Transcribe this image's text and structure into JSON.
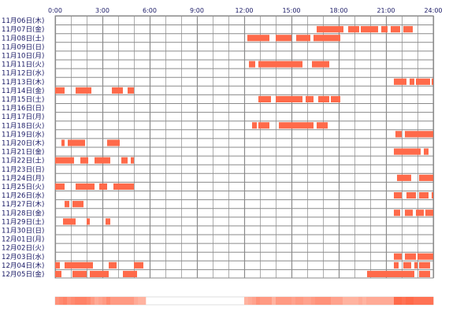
{
  "colors": {
    "bar": "#ff6a4a",
    "bar_light": "#ff9a80",
    "grid": "#8a8a8a",
    "text": "#1a1a66",
    "density_base": "#ffe6dd",
    "density_peak": "#ff6a4a"
  },
  "chart_data": {
    "type": "heatmap",
    "title": "",
    "x_axis": {
      "unit": "hours",
      "range": [
        0,
        24
      ],
      "tick_labels": [
        "0:00",
        "3:00",
        "6:00",
        "9:00",
        "12:00",
        "15:00",
        "18:00",
        "21:00",
        "24:00"
      ]
    },
    "grid": true,
    "rows": [
      {
        "label": "11月06日(木)",
        "segments": []
      },
      {
        "label": "11月07日(金)",
        "segments": [
          [
            16.6,
            18.3
          ],
          [
            18.6,
            19.3
          ],
          [
            19.4,
            20.5
          ],
          [
            20.7,
            21.1
          ],
          [
            21.3,
            21.9
          ],
          [
            22.1,
            22.7
          ]
        ]
      },
      {
        "label": "11月08日(土)",
        "segments": [
          [
            12.2,
            13.6
          ],
          [
            14.0,
            15.0
          ],
          [
            15.3,
            16.2
          ],
          [
            16.4,
            18.1
          ]
        ]
      },
      {
        "label": "11月09日(日)",
        "segments": []
      },
      {
        "label": "11月10日(月)",
        "segments": []
      },
      {
        "label": "11月11日(火)",
        "segments": [
          [
            12.3,
            12.7
          ],
          [
            12.9,
            15.7
          ],
          [
            16.3,
            17.4
          ]
        ]
      },
      {
        "label": "11月12日(水)",
        "segments": []
      },
      {
        "label": "11月13日(木)",
        "segments": [
          [
            21.5,
            22.3
          ],
          [
            22.5,
            22.8
          ],
          [
            22.9,
            23.8
          ],
          [
            23.9,
            24.0
          ]
        ]
      },
      {
        "label": "11月14日(金)",
        "segments": [
          [
            0.0,
            0.6
          ],
          [
            1.3,
            2.3
          ],
          [
            3.6,
            4.3
          ],
          [
            4.6,
            5.0
          ]
        ]
      },
      {
        "label": "11月15日(土)",
        "segments": [
          [
            12.9,
            13.7
          ],
          [
            14.0,
            15.7
          ],
          [
            15.9,
            16.4
          ],
          [
            16.7,
            17.4
          ],
          [
            17.5,
            18.1
          ]
        ]
      },
      {
        "label": "11月16日(日)",
        "segments": []
      },
      {
        "label": "11月17日(月)",
        "segments": []
      },
      {
        "label": "11月18日(火)",
        "segments": [
          [
            12.5,
            12.8
          ],
          [
            12.9,
            13.6
          ],
          [
            14.2,
            16.4
          ],
          [
            16.6,
            17.3
          ]
        ]
      },
      {
        "label": "11月19日(水)",
        "segments": [
          [
            21.6,
            22.0
          ],
          [
            22.2,
            24.0
          ]
        ]
      },
      {
        "label": "11月20日(木)",
        "segments": [
          [
            0.4,
            0.6
          ],
          [
            0.8,
            1.9
          ],
          [
            3.3,
            4.1
          ]
        ]
      },
      {
        "label": "11月21日(金)",
        "segments": [
          [
            21.5,
            23.2
          ],
          [
            23.4,
            23.7
          ]
        ]
      },
      {
        "label": "11月22日(土)",
        "segments": [
          [
            0.0,
            1.2
          ],
          [
            1.6,
            2.1
          ],
          [
            2.5,
            3.5
          ],
          [
            4.2,
            4.6
          ],
          [
            4.8,
            5.0
          ]
        ]
      },
      {
        "label": "11月23日(日)",
        "segments": []
      },
      {
        "label": "11月24日(月)",
        "segments": [
          [
            21.7,
            22.6
          ],
          [
            23.1,
            24.0
          ]
        ]
      },
      {
        "label": "11月25日(火)",
        "segments": [
          [
            0.0,
            0.6
          ],
          [
            1.3,
            2.5
          ],
          [
            2.8,
            3.3
          ],
          [
            3.7,
            5.0
          ]
        ]
      },
      {
        "label": "11月26日(水)",
        "segments": [
          [
            21.5,
            22.0
          ],
          [
            22.3,
            22.9
          ],
          [
            23.1,
            23.7
          ],
          [
            23.9,
            24.0
          ]
        ]
      },
      {
        "label": "11月27日(木)",
        "segments": [
          [
            0.6,
            0.9
          ],
          [
            1.1,
            1.8
          ]
        ]
      },
      {
        "label": "11月28日(金)",
        "segments": [
          [
            21.5,
            21.9
          ],
          [
            22.2,
            22.7
          ],
          [
            22.9,
            23.4
          ],
          [
            23.5,
            24.0
          ]
        ]
      },
      {
        "label": "11月29日(土)",
        "segments": [
          [
            0.5,
            1.3
          ],
          [
            2.0,
            2.2
          ],
          [
            3.2,
            3.5
          ]
        ]
      },
      {
        "label": "11月30日(日)",
        "segments": []
      },
      {
        "label": "12月01日(月)",
        "segments": []
      },
      {
        "label": "12月02日(火)",
        "segments": []
      },
      {
        "label": "12月03日(水)",
        "segments": [
          [
            21.5,
            22.0
          ],
          [
            22.2,
            22.9
          ],
          [
            23.0,
            24.0
          ]
        ]
      },
      {
        "label": "12月04日(木)",
        "segments": [
          [
            0.0,
            0.3
          ],
          [
            0.6,
            2.4
          ],
          [
            3.4,
            3.9
          ],
          [
            5.0,
            5.6
          ],
          [
            21.5,
            21.8
          ],
          [
            22.1,
            22.6
          ],
          [
            22.8,
            23.0
          ],
          [
            23.1,
            23.8
          ]
        ]
      },
      {
        "label": "12月05日(金)",
        "segments": [
          [
            0.0,
            0.4
          ],
          [
            1.1,
            2.0
          ],
          [
            2.2,
            3.4
          ],
          [
            4.3,
            5.2
          ],
          [
            19.8,
            22.8
          ],
          [
            23.1,
            23.8
          ]
        ]
      }
    ],
    "density_bar": {
      "present": true
    }
  }
}
